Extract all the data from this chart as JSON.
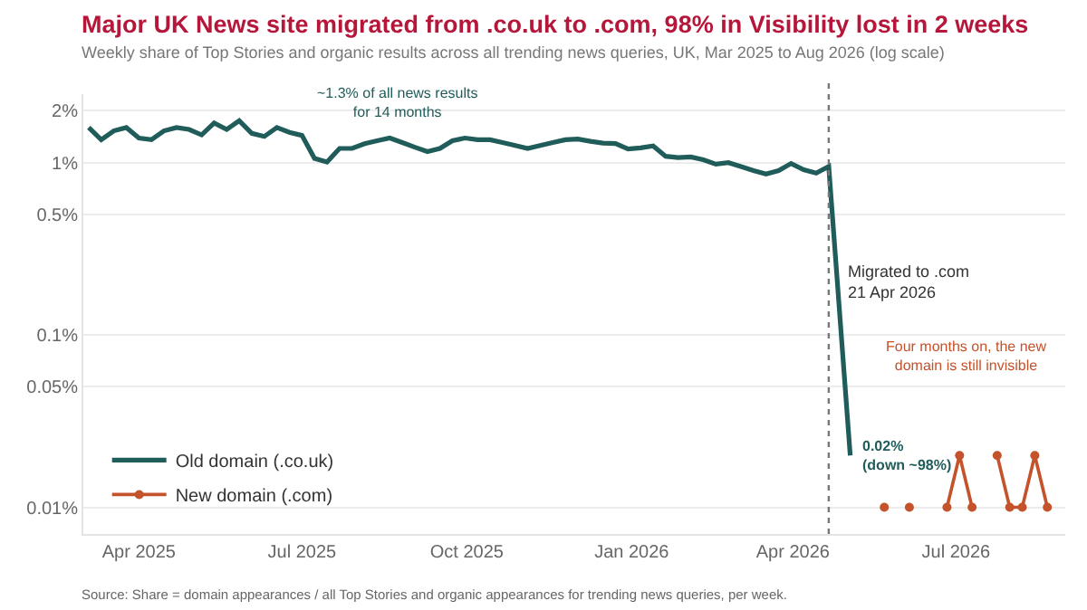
{
  "chart_data": {
    "type": "line",
    "title": "Major UK News site migrated from .co.uk to .com, 98% in Visibility lost in 2 weeks",
    "subtitle": "Weekly share of Top Stories and organic results across all trending news queries, UK, Mar 2025 to Aug 2026 (log scale)",
    "series": [
      {
        "name": "Old domain (.co.uk)",
        "color": "#1f5c5a",
        "marker": "none",
        "x": [
          "2025-03-04",
          "2025-03-11",
          "2025-03-18",
          "2025-03-25",
          "2025-04-01",
          "2025-04-08",
          "2025-04-15",
          "2025-04-22",
          "2025-04-29",
          "2025-05-06",
          "2025-05-13",
          "2025-05-20",
          "2025-05-27",
          "2025-06-03",
          "2025-06-10",
          "2025-06-17",
          "2025-06-24",
          "2025-07-01",
          "2025-07-08",
          "2025-07-15",
          "2025-07-22",
          "2025-07-29",
          "2025-08-05",
          "2025-08-12",
          "2025-08-19",
          "2025-08-26",
          "2025-09-02",
          "2025-09-09",
          "2025-09-16",
          "2025-09-23",
          "2025-09-30",
          "2025-10-07",
          "2025-10-14",
          "2025-10-21",
          "2025-10-28",
          "2025-11-04",
          "2025-11-11",
          "2025-11-18",
          "2025-11-25",
          "2025-12-02",
          "2025-12-09",
          "2025-12-16",
          "2025-12-23",
          "2025-12-30",
          "2026-01-06",
          "2026-01-13",
          "2026-01-20",
          "2026-01-27",
          "2026-02-03",
          "2026-02-10",
          "2026-02-17",
          "2026-02-24",
          "2026-03-03",
          "2026-03-10",
          "2026-03-17",
          "2026-03-24",
          "2026-03-31",
          "2026-04-07",
          "2026-04-14",
          "2026-04-21",
          "2026-05-03"
        ],
        "values": [
          1.6,
          1.36,
          1.53,
          1.6,
          1.39,
          1.36,
          1.53,
          1.6,
          1.56,
          1.45,
          1.7,
          1.56,
          1.75,
          1.48,
          1.42,
          1.6,
          1.5,
          1.44,
          1.06,
          1.01,
          1.21,
          1.21,
          1.29,
          1.34,
          1.39,
          1.31,
          1.23,
          1.16,
          1.21,
          1.34,
          1.39,
          1.36,
          1.36,
          1.31,
          1.26,
          1.21,
          1.26,
          1.31,
          1.36,
          1.37,
          1.33,
          1.3,
          1.29,
          1.2,
          1.22,
          1.25,
          1.09,
          1.07,
          1.08,
          1.04,
          0.98,
          1.0,
          0.95,
          0.9,
          0.86,
          0.9,
          0.99,
          0.91,
          0.87,
          0.95,
          0.02
        ]
      },
      {
        "name": "New domain (.com)",
        "color": "#c4522a",
        "marker": "circle",
        "x": [
          "2026-05-22",
          "2026-05-29",
          "2026-06-05",
          "2026-06-12",
          "2026-06-19",
          "2026-06-26",
          "2026-07-03",
          "2026-07-10",
          "2026-07-17",
          "2026-07-24",
          "2026-07-31",
          "2026-08-07",
          "2026-08-14",
          "2026-08-21"
        ],
        "values": [
          0.01,
          null,
          0.01,
          null,
          null,
          0.01,
          0.02,
          0.01,
          null,
          0.02,
          0.01,
          0.01,
          0.02,
          0.01
        ]
      }
    ],
    "log": true,
    "ylim": [
      0.007,
      2.5
    ],
    "yticks": [
      {
        "value": 0.01,
        "label": "0.01%"
      },
      {
        "value": 0.05,
        "label": "0.05%"
      },
      {
        "value": 0.1,
        "label": "0.1%"
      },
      {
        "value": 0.5,
        "label": "0.5%"
      },
      {
        "value": 1,
        "label": "1%"
      },
      {
        "value": 2,
        "label": "2%"
      }
    ],
    "xlim": [
      "2025-03-01",
      "2026-08-31"
    ],
    "xticks": [
      {
        "value": "2025-04-01",
        "label": "Apr 2025"
      },
      {
        "value": "2025-07-01",
        "label": "Jul 2025"
      },
      {
        "value": "2025-10-01",
        "label": "Oct 2025"
      },
      {
        "value": "2026-01-01",
        "label": "Jan 2026"
      },
      {
        "value": "2026-04-01",
        "label": "Apr 2026"
      },
      {
        "value": "2026-07-01",
        "label": "Jul 2026"
      }
    ],
    "grid": "y",
    "legend": "bottom left",
    "line_style": "solid",
    "ref_lines": [
      {
        "axis": "x",
        "value": "2026-04-21",
        "label": "Migrated to .com\n21 Apr 2026",
        "color": "#777777",
        "line_style": "dotted"
      }
    ],
    "annotations": [
      "~1.3% of all news results\nfor 14 months",
      {
        "text": "0.02%\n(down ~98%)",
        "x": "2026-05-05",
        "y": 0.02
      },
      "Four months on, the new\ndomain is still invisible",
      "Source: Share = domain appearances / all Top Stories and organic appearances for trending news queries, per week."
    ]
  }
}
